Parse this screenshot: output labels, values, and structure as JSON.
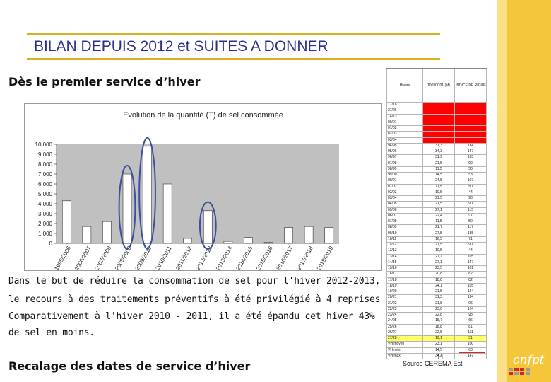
{
  "slide": {
    "title": "BILAN DEPUIS 2012 et SUITES A DONNER",
    "subtitle": "Dès le premier service d’hiver",
    "paragraph_lines": [
      "Dans le but de réduire la consommation de sel pour l'hiver 2012-2013,",
      "le recours à des traitements préventifs à été privilégié à 4 reprises :",
      "Comparativement à l'hiver 2010 - 2011, il a été épandu cet hiver 43%",
      "de sel en moins."
    ],
    "bottom_heading": "Recalage des dates de service d’hiver",
    "page_number": "11",
    "source": "Source CEREMA Est",
    "logo_text": "cnfpt"
  },
  "colors": {
    "title": "#2b2f8c",
    "accent_band": "#f6c63a",
    "bar": "#ffffff",
    "plot_bg": "#c0c0c0",
    "circle": "#3c4ea0",
    "table_red": "#ff0000",
    "table_yellow": "#ffff66",
    "logo_red": "#d4242c"
  },
  "chart_data": {
    "type": "bar",
    "title": "Evolution de la quantité (T) de sel consommée",
    "categories": [
      "1995/2006",
      "2006/2007",
      "2007/2008",
      "2008/2009",
      "2009/2010",
      "2010/2011",
      "2011/2012",
      "2012/2013",
      "2013/2014",
      "2014/2015",
      "2015/2016",
      "2016/2017",
      "2017/2018",
      "2018/2019"
    ],
    "values": [
      4300,
      1700,
      2200,
      7000,
      9800,
      6000,
      500,
      3300,
      200,
      600,
      100,
      1600,
      1700,
      1600
    ],
    "ylim": [
      0,
      10000
    ],
    "yticks": [
      "0",
      "1 000",
      "2 000",
      "3 000",
      "4 000",
      "5 000",
      "6 000",
      "7 000",
      "8 000",
      "9 000",
      "10 000"
    ],
    "highlighted_categories": [
      "2008/2009",
      "2009/2010",
      "2012/2013"
    ]
  },
  "table": {
    "headers": [
      "Hivers",
      "10030C01 (M)",
      "INDICE DE RIGUEUR (VI) 100"
    ],
    "rows": [
      [
        "77/76",
        "",
        ""
      ],
      [
        "27/26",
        "",
        ""
      ],
      [
        "74/73",
        "",
        ""
      ],
      [
        "00/01",
        "",
        ""
      ],
      [
        "01/02",
        "",
        ""
      ],
      [
        "02/03",
        "",
        ""
      ],
      [
        "03/04",
        "",
        ""
      ],
      [
        "94/95",
        "37,3",
        "134"
      ],
      [
        "95/96",
        "34,3",
        "147"
      ],
      [
        "96/97",
        "31,9",
        "133"
      ],
      [
        "97/98",
        "21,5",
        "99"
      ],
      [
        "98/99",
        "11,5",
        "50"
      ],
      [
        "99/00",
        "14,5",
        "53"
      ],
      [
        "00/01",
        "24,5",
        "107"
      ],
      [
        "01/02",
        "11,5",
        "50"
      ],
      [
        "02/03",
        "10,5",
        "44"
      ],
      [
        "03/04",
        "21,5",
        "90"
      ],
      [
        "04/05",
        "21,5",
        "90"
      ],
      [
        "05/06",
        "27,1",
        "115"
      ],
      [
        "06/07",
        "22,4",
        "97"
      ],
      [
        "07/08",
        "11,5",
        "50"
      ],
      [
        "08/09",
        "21,7",
        "117"
      ],
      [
        "09/10",
        "27,5",
        "135"
      ],
      [
        "10/11",
        "16,5",
        "71"
      ],
      [
        "11/12",
        "21,5",
        "90"
      ],
      [
        "12/13",
        "10,5",
        "44"
      ],
      [
        "13/14",
        "21,7",
        "105"
      ],
      [
        "14/15",
        "27,1",
        "147"
      ],
      [
        "15/16",
        "23,5",
        "101"
      ],
      [
        "16/17",
        "20,8",
        "82"
      ],
      [
        "17/18",
        "18,8",
        "82"
      ],
      [
        "18/19",
        "24,1",
        "105"
      ],
      [
        "19/20",
        "21,5",
        "124"
      ],
      [
        "20/21",
        "31,3",
        "134"
      ],
      [
        "21/22",
        "21,8",
        "96"
      ],
      [
        "22/23",
        "23,6",
        "124"
      ],
      [
        "23/24",
        "22,8",
        "98"
      ],
      [
        "24/25",
        "15,7",
        "66"
      ],
      [
        "25/26",
        "18,8",
        "81"
      ],
      [
        "26/27",
        "22,5",
        "111"
      ],
      [
        "27/28",
        "19,1",
        "31"
      ],
      [
        "VH moyen",
        "23,1",
        "100"
      ],
      [
        "VH mini",
        "14,5",
        "63"
      ],
      [
        "VH max",
        "34,3",
        "147"
      ]
    ],
    "highlight_row": "27/28"
  }
}
